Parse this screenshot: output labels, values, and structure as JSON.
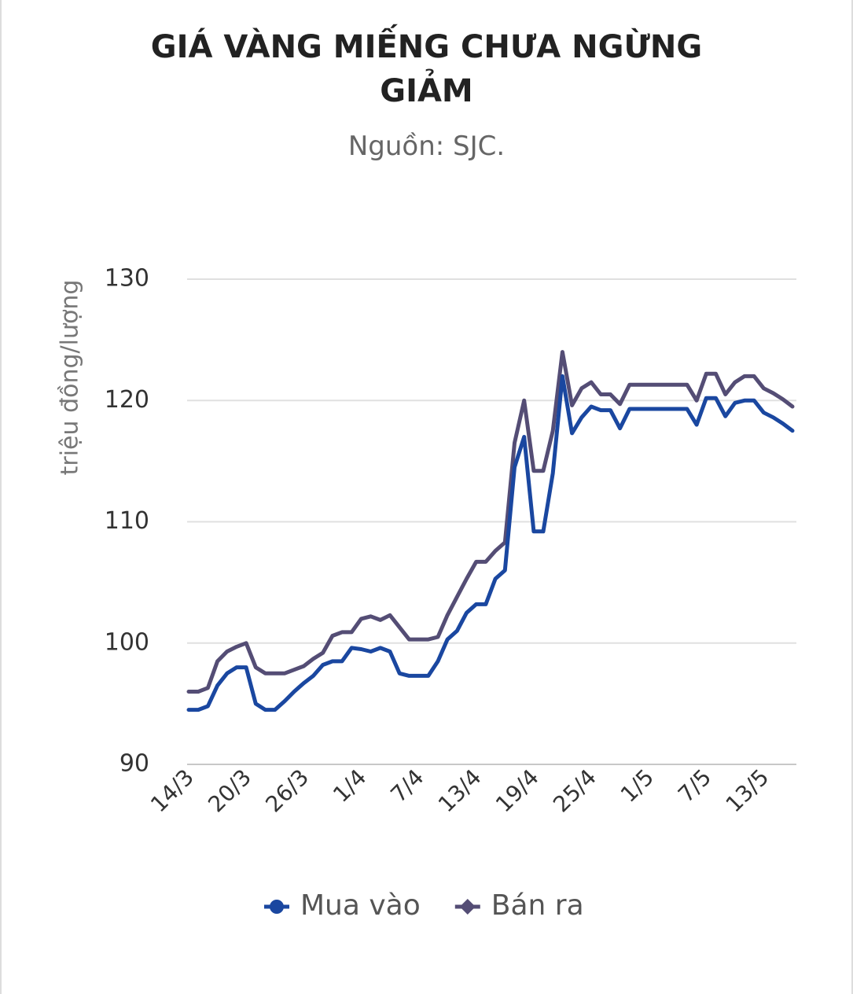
{
  "chart_data": {
    "type": "line",
    "title": "GIÁ VÀNG MIẾNG CHƯA NGỪNG GIẢM",
    "subtitle": "Nguồn: SJC.",
    "y_label": "triệu đồng/lượng",
    "categories": [
      "14/3",
      null,
      null,
      null,
      null,
      null,
      "20/3",
      null,
      null,
      null,
      null,
      null,
      "26/3",
      null,
      null,
      null,
      null,
      null,
      "1/4",
      null,
      null,
      null,
      null,
      null,
      "7/4",
      null,
      null,
      null,
      null,
      null,
      "13/4",
      null,
      null,
      null,
      null,
      null,
      "19/4",
      null,
      null,
      null,
      null,
      null,
      "25/4",
      null,
      null,
      null,
      null,
      null,
      "1/5",
      null,
      null,
      null,
      null,
      null,
      "7/5",
      null,
      null,
      null,
      null,
      null,
      "13/5",
      null,
      null,
      null
    ],
    "series": [
      {
        "name": "Mua vào",
        "color": "#1a47a0",
        "marker": "circle",
        "values": [
          94.5,
          94.5,
          94.8,
          96.5,
          97.5,
          98,
          98,
          95,
          94.5,
          94.5,
          95.2,
          96,
          96.7,
          97.3,
          98.2,
          98.5,
          98.5,
          99.6,
          99.5,
          99.3,
          99.6,
          99.3,
          97.5,
          97.3,
          97.3,
          97.3,
          98.5,
          100.3,
          101,
          102.5,
          103.2,
          103.2,
          105.3,
          106,
          114.5,
          117,
          109.2,
          109.2,
          114,
          122,
          117.3,
          118.6,
          119.5,
          119.2,
          119.2,
          117.7,
          119.3,
          119.3,
          119.3,
          119.3,
          119.3,
          119.3,
          119.3,
          118,
          120.2,
          120.2,
          118.7,
          119.8,
          120,
          120,
          119,
          118.6,
          118.1,
          117.5
        ]
      },
      {
        "name": "Bán ra",
        "color": "#544d75",
        "marker": "diamond",
        "values": [
          96,
          96,
          96.3,
          98.5,
          99.3,
          99.7,
          100,
          98,
          97.5,
          97.5,
          97.5,
          97.8,
          98.1,
          98.7,
          99.2,
          100.6,
          100.9,
          100.9,
          102,
          102.2,
          101.9,
          102.3,
          101.3,
          100.3,
          100.3,
          100.3,
          100.5,
          102.3,
          103.8,
          105.3,
          106.7,
          106.7,
          107.6,
          108.3,
          116.5,
          120,
          114.2,
          114.2,
          117.5,
          124,
          119.6,
          121,
          121.5,
          120.5,
          120.5,
          119.7,
          121.3,
          121.3,
          121.3,
          121.3,
          121.3,
          121.3,
          121.3,
          120,
          122.2,
          122.2,
          120.5,
          121.5,
          122,
          122,
          121,
          120.6,
          120.1,
          119.5
        ]
      }
    ],
    "ylim": [
      90,
      130
    ],
    "yticks": [
      90,
      100,
      110,
      120,
      130
    ],
    "grid": true,
    "legend": "bottom"
  }
}
